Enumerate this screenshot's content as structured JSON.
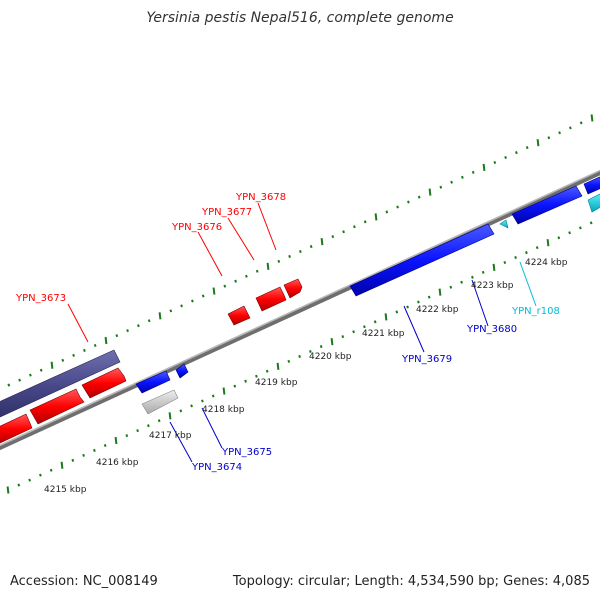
{
  "title": "Yersinia pestis Nepal516, complete genome",
  "footer": {
    "accession": "Accession: NC_008149",
    "stats": "Topology: circular; Length: 4,534,590 bp; Genes: 4,085"
  },
  "colors": {
    "forward_gene": "#ff0000",
    "forward_dark": "#4a4a8c",
    "reverse_gene": "#0000ff",
    "rna": "#00c8d8",
    "pseudo": "#c8c8c8",
    "tick": "#1a7a1a",
    "backbone": "#808080"
  },
  "tick_labels": [
    "4215 kbp",
    "4216 kbp",
    "4217 kbp",
    "4218 kbp",
    "4219 kbp",
    "4220 kbp",
    "4221 kbp",
    "4222 kbp",
    "4223 kbp",
    "4224 kbp"
  ],
  "genes": {
    "ypn_3673": "YPN_3673",
    "ypn_3674": "YPN_3674",
    "ypn_3675": "YPN_3675",
    "ypn_3676": "YPN_3676",
    "ypn_3677": "YPN_3677",
    "ypn_3678": "YPN_3678",
    "ypn_3679": "YPN_3679",
    "ypn_3680": "YPN_3680",
    "ypn_r108": "YPN_r108"
  }
}
